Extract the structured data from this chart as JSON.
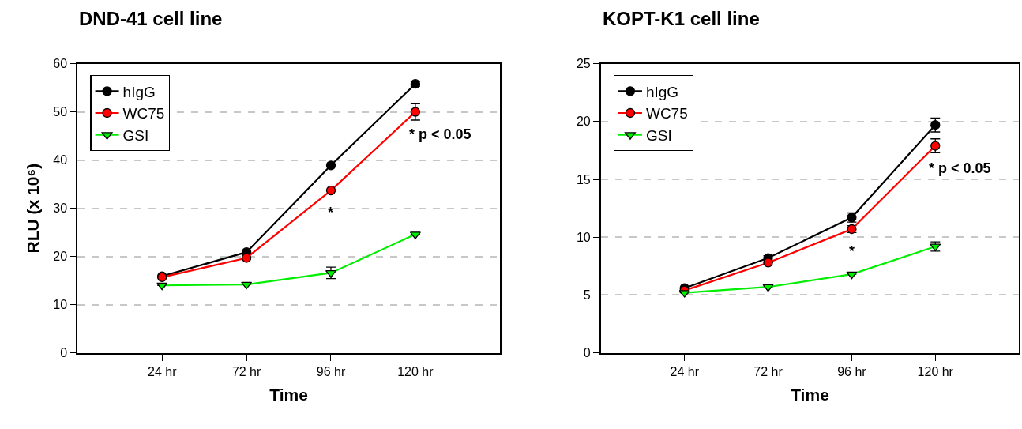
{
  "chart_data": [
    {
      "type": "line",
      "title": "DND-41 cell line",
      "xlabel": "Time",
      "ylabel": "RLU (x 10⁶)",
      "categories": [
        "24 hr",
        "72 hr",
        "96 hr",
        "120 hr"
      ],
      "ylim": [
        0,
        60
      ],
      "yticks": [
        0,
        10,
        20,
        30,
        40,
        50,
        60
      ],
      "grid": "y",
      "legend": "top left",
      "line_style": "solid",
      "series": [
        {
          "name": "hIgG",
          "color": "#000000",
          "marker": "circle",
          "values": [
            15.9,
            20.9,
            38.9,
            55.8
          ],
          "errors": [
            null,
            null,
            null,
            0.5
          ]
        },
        {
          "name": "WC75",
          "color": "#ff0000",
          "marker": "circle",
          "values": [
            15.7,
            19.7,
            33.7,
            50.0
          ],
          "errors": [
            null,
            null,
            null,
            1.7
          ]
        },
        {
          "name": "GSI",
          "color": "#00ee00",
          "marker": "triangle",
          "values": [
            14.0,
            14.2,
            16.6,
            24.6
          ],
          "errors": [
            null,
            null,
            1.2,
            null
          ]
        }
      ],
      "annotations": [
        "*",
        "* p < 0.05"
      ]
    },
    {
      "type": "line",
      "title": "KOPT-K1 cell line",
      "xlabel": "Time",
      "categories": [
        "24 hr",
        "72 hr",
        "96 hr",
        "120 hr"
      ],
      "ylim": [
        0,
        25
      ],
      "yticks": [
        0,
        5,
        10,
        15,
        20,
        25
      ],
      "grid": "y",
      "legend": "top left",
      "line_style": "solid",
      "series": [
        {
          "name": "hIgG",
          "color": "#000000",
          "marker": "circle",
          "values": [
            5.6,
            8.2,
            11.7,
            19.7
          ],
          "errors": [
            null,
            0.2,
            0.4,
            0.6
          ]
        },
        {
          "name": "WC75",
          "color": "#ff0000",
          "marker": "circle",
          "values": [
            5.4,
            7.8,
            10.7,
            17.9
          ],
          "errors": [
            null,
            null,
            0.3,
            0.6
          ]
        },
        {
          "name": "GSI",
          "color": "#00ee00",
          "marker": "triangle",
          "values": [
            5.2,
            5.7,
            6.8,
            9.2
          ],
          "errors": [
            null,
            null,
            null,
            0.4
          ]
        }
      ],
      "annotations": [
        "*",
        "* p < 0.05"
      ]
    }
  ]
}
